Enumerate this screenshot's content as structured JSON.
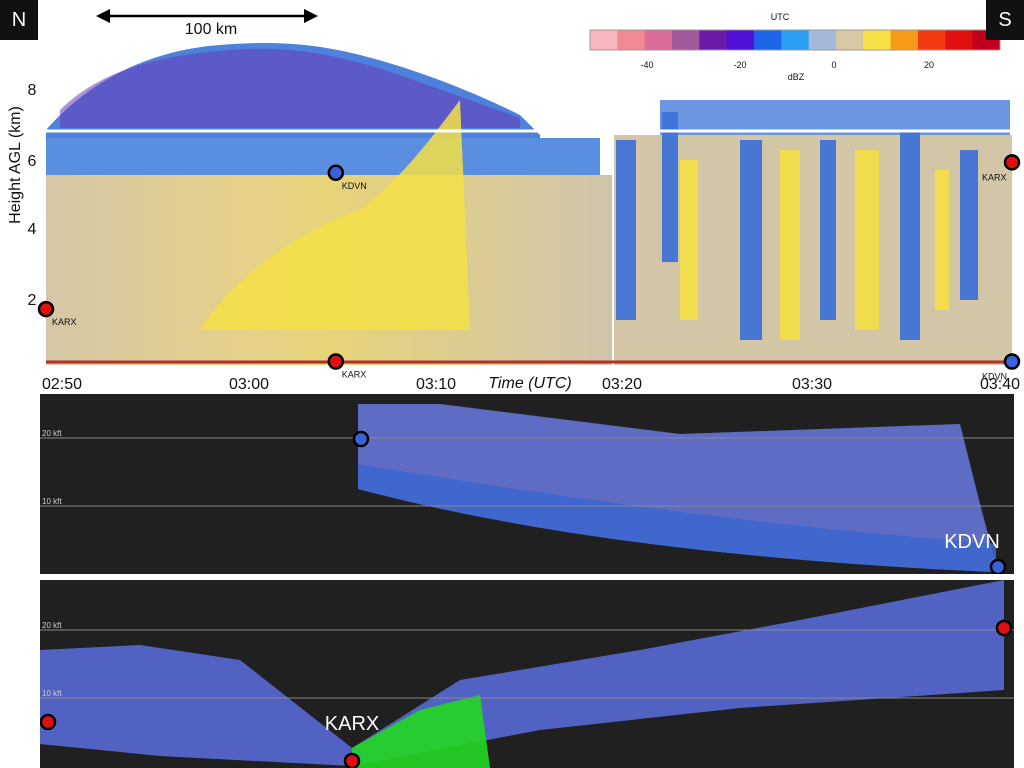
{
  "corners": {
    "left": "N",
    "right": "S"
  },
  "scale_bar": {
    "label": "100 km"
  },
  "colorbar": {
    "top_label": "UTC",
    "bottom_label": "dBZ",
    "ticks": [
      "-40",
      "-20",
      "0",
      "20"
    ],
    "colors": [
      "#f9b6bf",
      "#ef8a93",
      "#d96c98",
      "#a05a9c",
      "#6a1ba8",
      "#5010d8",
      "#1e64e6",
      "#2a9ef2",
      "#a4b8d8",
      "#d8c8a4",
      "#f8e048",
      "#f69a18",
      "#f23a10",
      "#e01010",
      "#c0001a"
    ]
  },
  "chart_data": [
    {
      "type": "heatmap",
      "title": "",
      "ylabel": "Height AGL (km)",
      "xlabel": "Time (UTC)",
      "y_ticks": [
        "2",
        "4",
        "6",
        "8"
      ],
      "ylim": [
        0,
        9.5
      ],
      "x_ticks": [
        "02:50",
        "03:00",
        "03:10",
        "03:20",
        "03:30",
        "03:40"
      ],
      "sites": [
        {
          "name": "KDVN",
          "color": "#3a62d8",
          "time": "03:05",
          "height_km": 5.7
        },
        {
          "name": "KARX",
          "color": "#e01010",
          "time": "02:50",
          "height_km": 1.8
        },
        {
          "name": "KARX",
          "color": "#e01010",
          "time": "03:05",
          "height_km": 0.3
        },
        {
          "name": "KDVN",
          "color": "#3a62d8",
          "time": "03:40",
          "height_km": 0.3
        },
        {
          "name": "KARX",
          "color": "#e01010",
          "time": "03:40",
          "height_km": 6.0
        }
      ]
    },
    {
      "type": "heatmap",
      "site_label": "KDVN",
      "levels": [
        "20 kft",
        "10 kft"
      ]
    },
    {
      "type": "heatmap",
      "site_label": "KARX",
      "levels": [
        "20 kft",
        "10 kft"
      ]
    }
  ]
}
